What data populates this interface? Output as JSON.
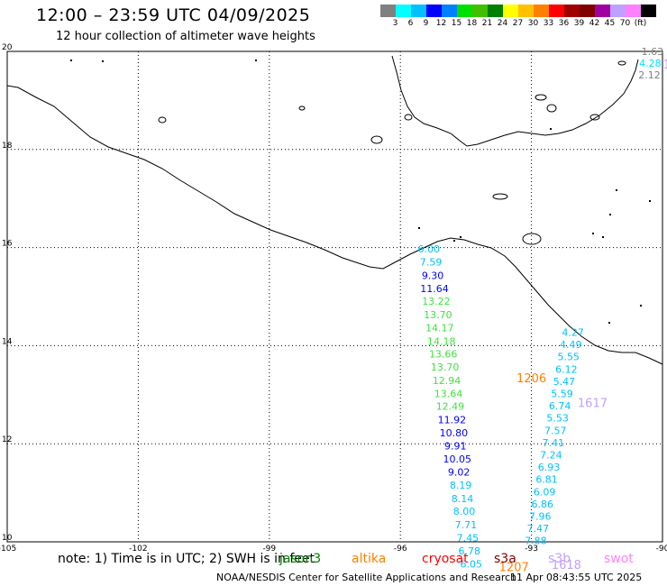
{
  "title": "12:00 – 23:59 UTC 04/09/2025",
  "subtitle": "12 hour collection of altimeter wave heights",
  "colorbar": {
    "colors": [
      "#808080",
      "#00ffff",
      "#00c0ff",
      "#0000ff",
      "#0080ff",
      "#00e000",
      "#40c000",
      "#008000",
      "#ffff00",
      "#ffc000",
      "#ff8000",
      "#ff0000",
      "#a00000",
      "#800000",
      "#a000a0",
      "#c0a0ff",
      "#ff80ff",
      "#000000"
    ],
    "labels": [
      "3",
      "6",
      "9",
      "12",
      "15",
      "18",
      "21",
      "24",
      "27",
      "30",
      "33",
      "36",
      "39",
      "42",
      "45",
      "70",
      "(ft)"
    ]
  },
  "axes": {
    "lon_ticks": [
      "-105",
      "-102",
      "-99",
      "-96",
      "-93",
      "-90"
    ],
    "lat_ticks": [
      "20",
      "18",
      "16",
      "14",
      "12",
      "10"
    ],
    "lon_range": [
      -105,
      -90
    ],
    "lat_range": [
      10,
      20
    ]
  },
  "tracks": [
    {
      "label": "1206",
      "label_color": "#ff8000",
      "label_pos": [
        -93.0,
        13.25
      ],
      "points": [
        {
          "lon": -95.35,
          "lat": 15.9,
          "v": "6.00",
          "c": "#00c0ff"
        },
        {
          "lon": -95.3,
          "lat": 15.63,
          "v": "7.59",
          "c": "#00c0ff"
        },
        {
          "lon": -95.26,
          "lat": 15.36,
          "v": "9.30",
          "c": "#0000ff"
        },
        {
          "lon": -95.22,
          "lat": 15.09,
          "v": "11.64",
          "c": "#0000ff"
        },
        {
          "lon": -95.18,
          "lat": 14.83,
          "v": "13.22",
          "c": "#40e040"
        },
        {
          "lon": -95.14,
          "lat": 14.56,
          "v": "13.70",
          "c": "#40e040"
        },
        {
          "lon": -95.1,
          "lat": 14.29,
          "v": "14.17",
          "c": "#40e040"
        },
        {
          "lon": -95.06,
          "lat": 14.02,
          "v": "14.18",
          "c": "#40e040"
        },
        {
          "lon": -95.02,
          "lat": 13.76,
          "v": "13.66",
          "c": "#40e040"
        },
        {
          "lon": -94.98,
          "lat": 13.49,
          "v": "13.70",
          "c": "#40e040"
        },
        {
          "lon": -94.94,
          "lat": 13.22,
          "v": "12.94",
          "c": "#40e040"
        },
        {
          "lon": -94.9,
          "lat": 12.95,
          "v": "13.64",
          "c": "#40e040"
        },
        {
          "lon": -94.86,
          "lat": 12.69,
          "v": "12.49",
          "c": "#40e040"
        },
        {
          "lon": -94.82,
          "lat": 12.42,
          "v": "11.92",
          "c": "#0000ff"
        },
        {
          "lon": -94.78,
          "lat": 12.15,
          "v": "10.80",
          "c": "#0000ff"
        },
        {
          "lon": -94.74,
          "lat": 11.88,
          "v": "9.91",
          "c": "#0000ff"
        },
        {
          "lon": -94.7,
          "lat": 11.62,
          "v": "10.05",
          "c": "#0000ff"
        },
        {
          "lon": -94.66,
          "lat": 11.35,
          "v": "9.02",
          "c": "#0000ff"
        },
        {
          "lon": -94.62,
          "lat": 11.08,
          "v": "8.19",
          "c": "#00c0ff"
        },
        {
          "lon": -94.58,
          "lat": 10.81,
          "v": "8.14",
          "c": "#00c0ff"
        },
        {
          "lon": -94.54,
          "lat": 10.55,
          "v": "8.00",
          "c": "#00c0ff"
        },
        {
          "lon": -94.5,
          "lat": 10.28,
          "v": "7.71",
          "c": "#00c0ff"
        },
        {
          "lon": -94.46,
          "lat": 10.01,
          "v": "7.45",
          "c": "#00c0ff"
        },
        {
          "lon": -94.42,
          "lat": 9.74,
          "v": "6.78",
          "c": "#00c0ff"
        },
        {
          "lon": -94.38,
          "lat": 9.48,
          "v": "6.05",
          "c": "#00c0ff"
        }
      ]
    },
    {
      "label": "1617",
      "label_color": "#c0a0ff",
      "label_pos": [
        -91.6,
        12.75
      ],
      "points": [
        {
          "lon": -92.05,
          "lat": 14.2,
          "v": "4.27",
          "c": "#00c0ff"
        },
        {
          "lon": -92.1,
          "lat": 13.95,
          "v": "4.49",
          "c": "#00c0ff"
        },
        {
          "lon": -92.15,
          "lat": 13.7,
          "v": "5.55",
          "c": "#00c0ff"
        },
        {
          "lon": -92.2,
          "lat": 13.45,
          "v": "6.12",
          "c": "#00c0ff"
        },
        {
          "lon": -92.25,
          "lat": 13.2,
          "v": "5.47",
          "c": "#00c0ff"
        },
        {
          "lon": -92.3,
          "lat": 12.95,
          "v": "5.59",
          "c": "#00c0ff"
        },
        {
          "lon": -92.35,
          "lat": 12.7,
          "v": "6.74",
          "c": "#00c0ff"
        },
        {
          "lon": -92.4,
          "lat": 12.45,
          "v": "5.53",
          "c": "#00c0ff"
        },
        {
          "lon": -92.45,
          "lat": 12.2,
          "v": "7.57",
          "c": "#00c0ff"
        },
        {
          "lon": -92.5,
          "lat": 11.95,
          "v": "7.41",
          "c": "#00c0ff"
        },
        {
          "lon": -92.55,
          "lat": 11.7,
          "v": "7.24",
          "c": "#00c0ff"
        },
        {
          "lon": -92.6,
          "lat": 11.45,
          "v": "6.93",
          "c": "#00c0ff"
        },
        {
          "lon": -92.65,
          "lat": 11.2,
          "v": "6.81",
          "c": "#00c0ff"
        },
        {
          "lon": -92.7,
          "lat": 10.95,
          "v": "6.09",
          "c": "#00c0ff"
        },
        {
          "lon": -92.75,
          "lat": 10.7,
          "v": "6.86",
          "c": "#00c0ff"
        },
        {
          "lon": -92.8,
          "lat": 10.45,
          "v": "7.96",
          "c": "#00c0ff"
        },
        {
          "lon": -92.85,
          "lat": 10.2,
          "v": "7.47",
          "c": "#00c0ff"
        },
        {
          "lon": -92.9,
          "lat": 9.95,
          "v": "7.88",
          "c": "#00c0ff"
        }
      ]
    },
    {
      "label": "1207",
      "label_color": "#ff8000",
      "label_pos": [
        -93.4,
        9.4
      ],
      "points": []
    },
    {
      "label": "1618",
      "label_color": "#c0a0ff",
      "label_pos": [
        -92.2,
        9.45
      ],
      "points": []
    },
    {
      "label": "1",
      "label_color": "#c0a0ff",
      "label_pos": [
        -89.9,
        19.65
      ],
      "points": [
        {
          "lon": -90.23,
          "lat": 19.93,
          "v": "1.63",
          "c": "#808080"
        },
        {
          "lon": -90.28,
          "lat": 19.69,
          "v": "4.28",
          "c": "#00e0ff"
        },
        {
          "lon": -90.3,
          "lat": 19.45,
          "v": "2.12",
          "c": "#808080"
        }
      ]
    }
  ],
  "note": "note: 1) Time is in UTC; 2) SWH is in feet",
  "satellites": [
    {
      "name": "jason3",
      "color": "#008000"
    },
    {
      "name": "altika",
      "color": "#ff8000"
    },
    {
      "name": "cryosat",
      "color": "#ff0000"
    },
    {
      "name": "s3a",
      "color": "#800000"
    },
    {
      "name": "s3b",
      "color": "#c0a0ff"
    },
    {
      "name": "swot",
      "color": "#ff80ff"
    }
  ],
  "credit": "NOAA/NESDIS Center for Satellite Applications and Research",
  "timestamp": "11 Apr 08:43:55 UTC 2025"
}
